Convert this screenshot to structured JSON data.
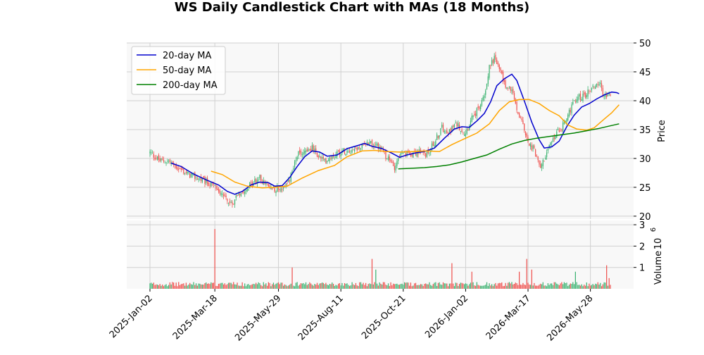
{
  "chart_data": {
    "type": "candlestick",
    "title": "WS Daily Candlestick Chart with MAs (18 Months)",
    "price_panel": {
      "ylabel": "Price",
      "ylim": [
        19.5,
        50
      ],
      "yticks": [
        20,
        25,
        30,
        35,
        40,
        45,
        50
      ],
      "grid": true,
      "legend_placement": "top-left"
    },
    "volume_panel": {
      "ylabel": "Volume",
      "exponent_label": "10",
      "exponent": "6",
      "ylim": [
        0,
        3
      ],
      "yticks": [
        1,
        2,
        3
      ],
      "grid": true
    },
    "x_ticks": [
      "2025-Jan-02",
      "2025-Mar-18",
      "2025-May-29",
      "2025-Aug-11",
      "2025-Oct-21",
      "2026-Jan-02",
      "2026-Mar-17",
      "2026-May-28"
    ],
    "x_tick_positions": [
      0,
      52,
      103,
      153,
      203,
      253,
      303,
      353
    ],
    "n_days": 370,
    "colors": {
      "up": "#3cb371",
      "down": "#ef5350",
      "ma20": "#0000cd",
      "ma50": "#ffa500",
      "ma200": "#008000",
      "panel_bg": "#f8f8f8",
      "grid": "#d0d0d0"
    },
    "series": [
      {
        "name": "20-day MA",
        "key": "ma20",
        "points": [
          [
            17,
            29.2
          ],
          [
            25,
            28.6
          ],
          [
            35,
            27.3
          ],
          [
            45,
            26.3
          ],
          [
            55,
            25.4
          ],
          [
            62,
            24.3
          ],
          [
            68,
            23.8
          ],
          [
            74,
            24.3
          ],
          [
            81,
            25.4
          ],
          [
            88,
            25.9
          ],
          [
            95,
            25.8
          ],
          [
            100,
            25.2
          ],
          [
            106,
            25.3
          ],
          [
            112,
            26.7
          ],
          [
            118,
            28.6
          ],
          [
            124,
            30.3
          ],
          [
            130,
            31.3
          ],
          [
            136,
            31.1
          ],
          [
            142,
            30.4
          ],
          [
            150,
            30.6
          ],
          [
            158,
            31.7
          ],
          [
            166,
            32.2
          ],
          [
            172,
            32.6
          ],
          [
            178,
            32.1
          ],
          [
            186,
            31.7
          ],
          [
            194,
            30.9
          ],
          [
            200,
            30.2
          ],
          [
            206,
            30.6
          ],
          [
            214,
            31.0
          ],
          [
            220,
            31.2
          ],
          [
            228,
            31.8
          ],
          [
            236,
            33.5
          ],
          [
            244,
            35.1
          ],
          [
            250,
            35.5
          ],
          [
            256,
            35.4
          ],
          [
            262,
            36.5
          ],
          [
            268,
            37.8
          ],
          [
            273,
            39.8
          ],
          [
            278,
            42.6
          ],
          [
            284,
            43.8
          ],
          [
            290,
            44.6
          ],
          [
            294,
            43.5
          ],
          [
            300,
            40.0
          ],
          [
            306,
            36.3
          ],
          [
            312,
            33.2
          ],
          [
            316,
            31.8
          ],
          [
            322,
            32.0
          ],
          [
            328,
            33.0
          ],
          [
            334,
            35.5
          ],
          [
            340,
            37.5
          ],
          [
            346,
            38.9
          ],
          [
            352,
            39.5
          ],
          [
            358,
            40.3
          ],
          [
            364,
            41.0
          ],
          [
            370,
            41.5
          ],
          [
            374,
            41.4
          ],
          [
            376,
            41.2
          ]
        ]
      },
      {
        "name": "50-day MA",
        "key": "ma50",
        "points": [
          [
            49,
            27.8
          ],
          [
            58,
            27.2
          ],
          [
            68,
            25.9
          ],
          [
            78,
            25.2
          ],
          [
            90,
            24.9
          ],
          [
            100,
            25.0
          ],
          [
            110,
            25.2
          ],
          [
            122,
            26.6
          ],
          [
            135,
            27.9
          ],
          [
            148,
            28.8
          ],
          [
            158,
            30.3
          ],
          [
            170,
            31.3
          ],
          [
            180,
            31.4
          ],
          [
            190,
            31.2
          ],
          [
            200,
            31.1
          ],
          [
            212,
            31.2
          ],
          [
            222,
            31.3
          ],
          [
            232,
            31.2
          ],
          [
            242,
            32.4
          ],
          [
            252,
            33.4
          ],
          [
            262,
            34.4
          ],
          [
            272,
            36.0
          ],
          [
            280,
            38.3
          ],
          [
            288,
            39.8
          ],
          [
            296,
            40.2
          ],
          [
            304,
            40.2
          ],
          [
            312,
            39.5
          ],
          [
            320,
            38.3
          ],
          [
            328,
            37.4
          ],
          [
            335,
            35.8
          ],
          [
            342,
            35.1
          ],
          [
            350,
            34.9
          ],
          [
            356,
            35.3
          ],
          [
            364,
            36.8
          ],
          [
            370,
            37.9
          ],
          [
            376,
            39.3
          ]
        ]
      },
      {
        "name": "200-day MA",
        "key": "ma200",
        "points": [
          [
            199,
            28.2
          ],
          [
            210,
            28.3
          ],
          [
            220,
            28.4
          ],
          [
            230,
            28.6
          ],
          [
            240,
            28.9
          ],
          [
            250,
            29.4
          ],
          [
            260,
            30.0
          ],
          [
            270,
            30.6
          ],
          [
            280,
            31.6
          ],
          [
            290,
            32.5
          ],
          [
            300,
            33.1
          ],
          [
            310,
            33.5
          ],
          [
            320,
            33.8
          ],
          [
            330,
            34.1
          ],
          [
            340,
            34.4
          ],
          [
            350,
            34.8
          ],
          [
            360,
            35.2
          ],
          [
            370,
            35.7
          ],
          [
            376,
            36.0
          ]
        ]
      }
    ],
    "price_anchors": [
      [
        0,
        31.0
      ],
      [
        8,
        29.6
      ],
      [
        15,
        29.5
      ],
      [
        22,
        28.4
      ],
      [
        30,
        27.3
      ],
      [
        40,
        26.4
      ],
      [
        48,
        25.6
      ],
      [
        53,
        25.0
      ],
      [
        60,
        23.6
      ],
      [
        65,
        21.8
      ],
      [
        70,
        23.8
      ],
      [
        78,
        25.0
      ],
      [
        88,
        26.6
      ],
      [
        95,
        25.0
      ],
      [
        103,
        24.7
      ],
      [
        110,
        25.2
      ],
      [
        118,
        30.6
      ],
      [
        124,
        31.3
      ],
      [
        130,
        31.8
      ],
      [
        134,
        30.6
      ],
      [
        140,
        29.5
      ],
      [
        146,
        30.6
      ],
      [
        152,
        31.2
      ],
      [
        160,
        31.5
      ],
      [
        168,
        31.8
      ],
      [
        176,
        33.0
      ],
      [
        184,
        32.0
      ],
      [
        190,
        30.0
      ],
      [
        196,
        28.6
      ],
      [
        200,
        30.5
      ],
      [
        208,
        30.9
      ],
      [
        214,
        31.1
      ],
      [
        222,
        30.7
      ],
      [
        228,
        32.8
      ],
      [
        234,
        35.3
      ],
      [
        240,
        34.8
      ],
      [
        246,
        36.0
      ],
      [
        252,
        34.3
      ],
      [
        258,
        36.8
      ],
      [
        264,
        38.8
      ],
      [
        268,
        41.0
      ],
      [
        272,
        45.8
      ],
      [
        276,
        47.5
      ],
      [
        280,
        45.5
      ],
      [
        285,
        42.5
      ],
      [
        290,
        41.8
      ],
      [
        294,
        38.5
      ],
      [
        300,
        35.0
      ],
      [
        304,
        32.3
      ],
      [
        308,
        31.5
      ],
      [
        312,
        28.5
      ],
      [
        318,
        30.8
      ],
      [
        324,
        33.8
      ],
      [
        330,
        35.4
      ],
      [
        336,
        38.0
      ],
      [
        342,
        40.5
      ],
      [
        348,
        40.8
      ],
      [
        354,
        42.2
      ],
      [
        360,
        43.2
      ],
      [
        364,
        40.8
      ],
      [
        368,
        41.0
      ],
      [
        372,
        40.0
      ],
      [
        376,
        36.2
      ]
    ],
    "volume_spikes": {
      "52": 2.8,
      "114": 1.0,
      "178": 1.4,
      "181": 0.9,
      "242": 1.2,
      "258": 0.8,
      "296": 0.8,
      "302": 1.4,
      "306": 0.9,
      "341": 0.8,
      "366": 1.1,
      "368": 0.5
    },
    "volume_base": 0.22
  }
}
